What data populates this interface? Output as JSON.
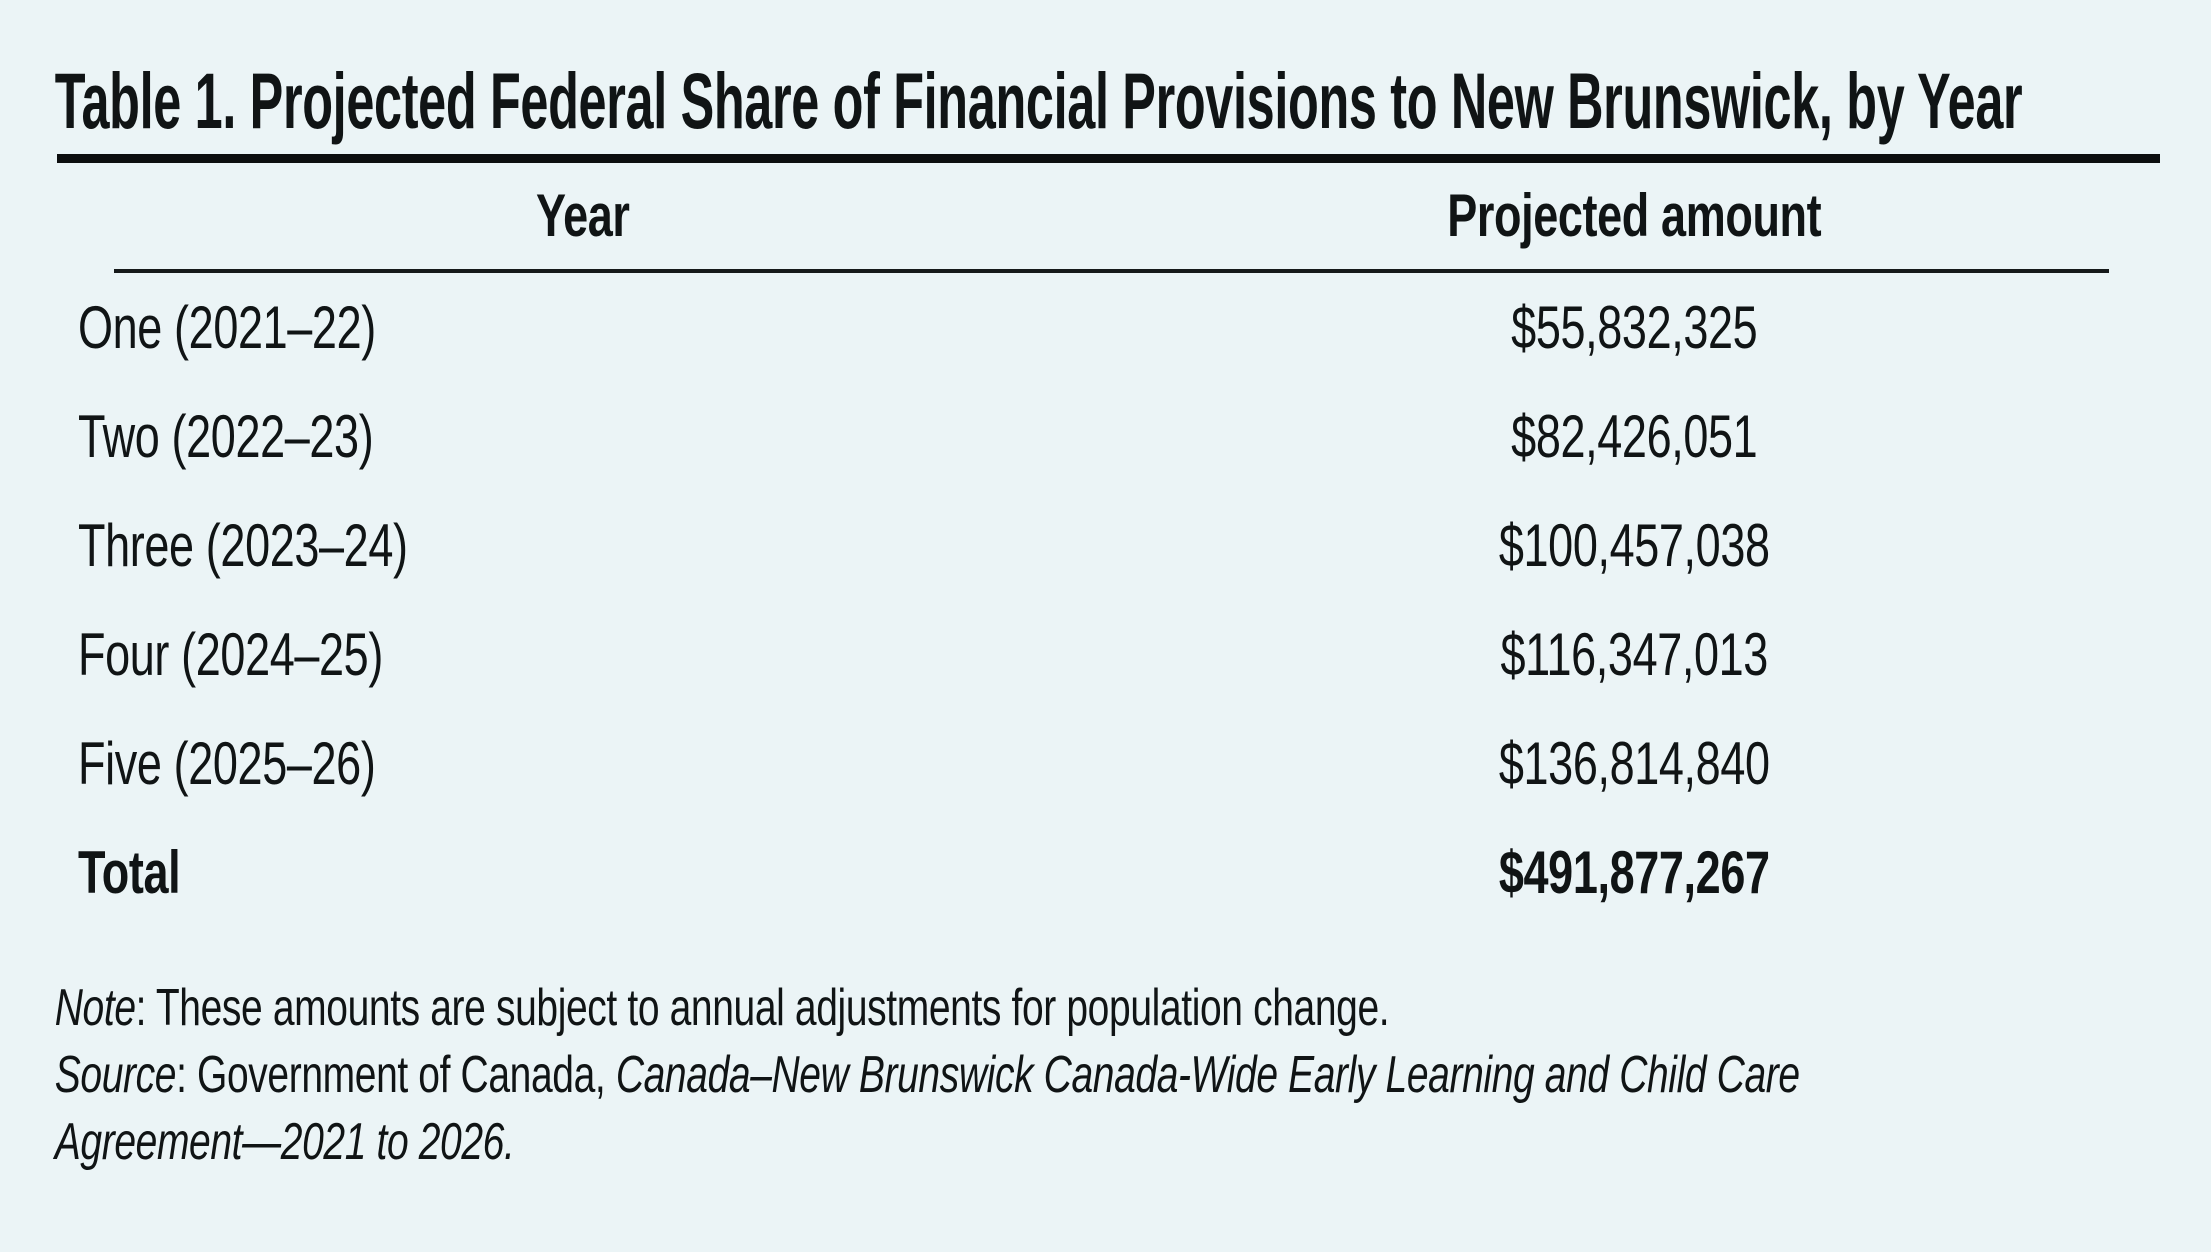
{
  "page": {
    "background_color": "#ebf4f6",
    "text_color": "#101415",
    "rule_color": "#0c0e0f"
  },
  "table": {
    "title": "Table 1. Projected Federal Share of Financial Provisions to New Brunswick, by Year",
    "columns": {
      "year": "Year",
      "amount": "Projected amount"
    },
    "rows": [
      {
        "year": "One (2021–22)",
        "amount": "$55,832,325"
      },
      {
        "year": "Two (2022–23)",
        "amount": "$82,426,051"
      },
      {
        "year": "Three (2023–24)",
        "amount": "$100,457,038"
      },
      {
        "year": "Four (2024–25)",
        "amount": "$116,347,013"
      },
      {
        "year": "Five (2025–26)",
        "amount": "$136,814,840"
      }
    ],
    "total_row": {
      "label": "Total",
      "amount": "$491,877,267"
    }
  },
  "notes": {
    "note": {
      "label": "Note",
      "text": ": These amounts are subject to annual adjustments for population change."
    },
    "source": {
      "label": "Source",
      "text": ": Government of Canada, ",
      "work_title": "Canada–New Brunswick Canada-Wide Early Learning and Child Care Agreement—2021 to 2026."
    }
  }
}
